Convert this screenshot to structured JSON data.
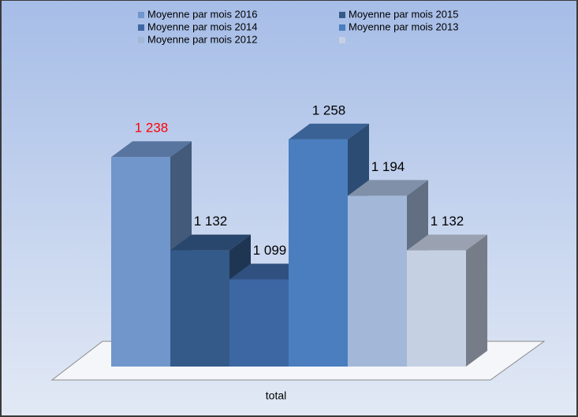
{
  "chart_data": {
    "type": "bar3d",
    "categories": [
      "total"
    ],
    "series": [
      {
        "name": "Moyenne par mois 2016",
        "color": "#7096cc",
        "values": [
          1238
        ],
        "value_labels": [
          "1 238"
        ],
        "label_color": "#ff0000"
      },
      {
        "name": "Moyenne par mois 2015",
        "color": "#345a8a",
        "values": [
          1132
        ],
        "value_labels": [
          "1 132"
        ]
      },
      {
        "name": "Moyenne par mois 2014",
        "color": "#3d67a3",
        "values": [
          1099
        ],
        "value_labels": [
          "1 099"
        ]
      },
      {
        "name": "Moyenne par mois 2013",
        "color": "#4a7ebf",
        "values": [
          1258
        ],
        "value_labels": [
          "1 258"
        ]
      },
      {
        "name": "Moyenne par mois 2012",
        "color": "#a3b8d8",
        "values": [
          1194
        ],
        "value_labels": [
          "1 194"
        ]
      },
      {
        "name": null,
        "color": "#c5d0e3",
        "values": [
          1132
        ],
        "value_labels": [
          "1 132"
        ]
      }
    ],
    "ylim": [
      1000,
      1300
    ]
  }
}
